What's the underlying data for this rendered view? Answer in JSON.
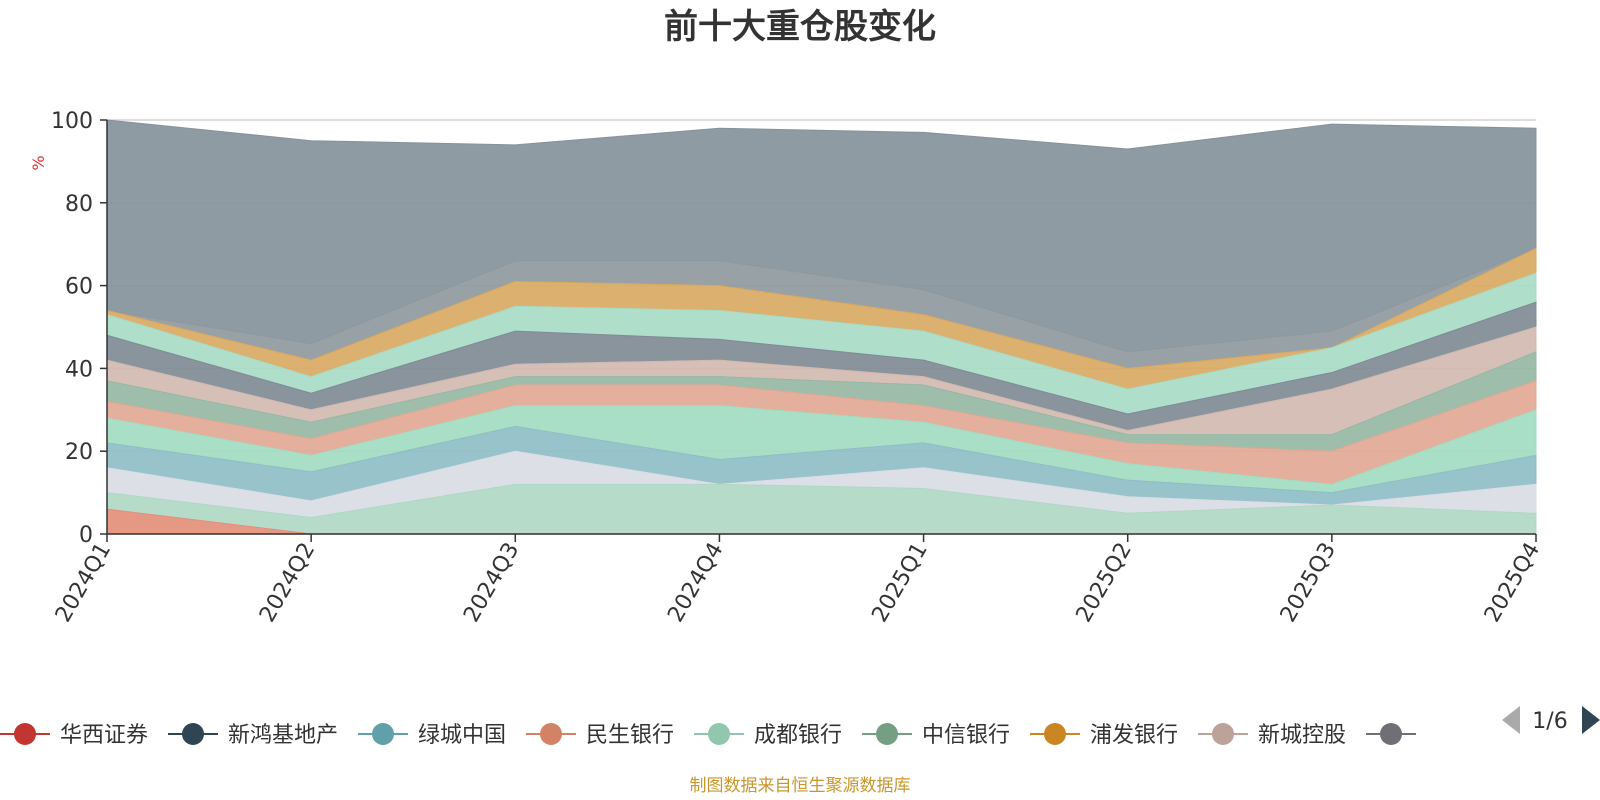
{
  "chart_data": {
    "type": "area",
    "title": "前十大重仓股变化",
    "ylabel": "%",
    "ylim": [
      0,
      100
    ],
    "y_ticks": [
      "0",
      "20",
      "40",
      "60",
      "80",
      "100"
    ],
    "grid": true,
    "x": [
      "2024Q1",
      "2024Q2",
      "2024Q3",
      "2024Q4",
      "2025Q1",
      "2025Q2",
      "2025Q3",
      "2025Q4"
    ],
    "layers": [
      {
        "color": "#9c9fa3",
        "values": [
          0,
          0,
          0,
          0,
          0,
          0,
          0,
          0
        ]
      },
      {
        "color": "#e38f79",
        "values": [
          6,
          0,
          0,
          0,
          0,
          0,
          0,
          0
        ]
      },
      {
        "color": "#b0d8c4",
        "values": [
          10,
          4,
          12,
          12,
          11,
          5,
          7,
          5
        ]
      },
      {
        "color": "#d9dde4",
        "values": [
          16,
          8,
          20,
          12,
          16,
          9,
          7,
          12
        ]
      },
      {
        "color": "#8fbec6",
        "values": [
          22,
          15,
          26,
          18,
          22,
          13,
          10,
          19
        ]
      },
      {
        "color": "#a3dcc2",
        "values": [
          28,
          19,
          31,
          31,
          27,
          17,
          12,
          30
        ]
      },
      {
        "color": "#e2a895",
        "values": [
          32,
          23,
          36,
          36,
          31,
          22,
          20,
          37
        ]
      },
      {
        "color": "#96b8a4",
        "values": [
          37,
          27,
          38,
          38,
          36,
          24,
          24,
          44
        ]
      },
      {
        "color": "#d1bab0",
        "values": [
          42,
          30,
          41,
          42,
          38,
          25,
          35,
          50
        ]
      },
      {
        "color": "#7f8b95",
        "values": [
          48,
          34,
          49,
          47,
          42,
          29,
          39,
          56
        ]
      },
      {
        "color": "#a8dbc5",
        "values": [
          53,
          38,
          55,
          54,
          49,
          35,
          45,
          63
        ]
      },
      {
        "color": "#d9a962",
        "values": [
          54,
          42,
          61,
          60,
          53,
          40,
          45,
          69
        ]
      },
      {
        "color": "#8f999e",
        "values": [
          54,
          46,
          66,
          66,
          59,
          44,
          49,
          69
        ]
      },
      {
        "color": "#84929a",
        "values": [
          100,
          95,
          94,
          98,
          97,
          93,
          99,
          98
        ]
      }
    ],
    "legend_placement": "bottom",
    "legend": [
      {
        "name": "华西证券",
        "color": "#c23531"
      },
      {
        "name": "新鸿基地产",
        "color": "#2f4554"
      },
      {
        "name": "绿城中国",
        "color": "#61a0a8"
      },
      {
        "name": "民生银行",
        "color": "#d48265"
      },
      {
        "name": "成都银行",
        "color": "#91c7ae"
      },
      {
        "name": "中信银行",
        "color": "#749f83"
      },
      {
        "name": "浦发银行",
        "color": "#ca8622"
      },
      {
        "name": "新城控股",
        "color": "#bda29a"
      },
      {
        "name": "",
        "color": "#6e7074"
      }
    ],
    "legend_page": "1/6",
    "source_note": "制图数据来自恒生聚源数据库"
  }
}
